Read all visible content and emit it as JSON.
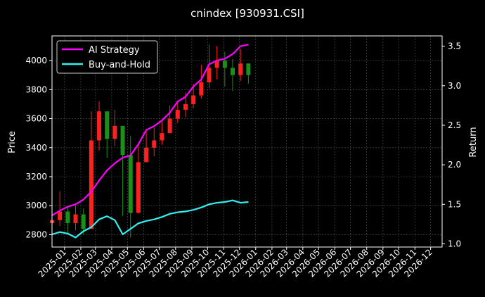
{
  "chart_data": {
    "type": "line",
    "title": "cnindex [930931.CSI]",
    "ylabel_left": "Price",
    "ylabel_right": "Return",
    "background": "#000000",
    "grid": true,
    "legend_position": "top-left",
    "x_axis": {
      "type": "date",
      "range": [
        "2024-12-08",
        "2026-12-23"
      ],
      "ticks": [
        "2025-01",
        "2025-02",
        "2025-03",
        "2025-04",
        "2025-05",
        "2025-06",
        "2025-07",
        "2025-08",
        "2025-09",
        "2025-10",
        "2025-11",
        "2025-12",
        "2026-01",
        "2026-02",
        "2026-03",
        "2026-04",
        "2026-05",
        "2026-06",
        "2026-07",
        "2026-08",
        "2026-09",
        "2026-10",
        "2026-11",
        "2026-12"
      ]
    },
    "y_left": {
      "range": [
        2715,
        4170
      ],
      "ticks": [
        2800,
        3000,
        3200,
        3400,
        3600,
        3800,
        4000
      ]
    },
    "y_right": {
      "range": [
        0.96,
        3.63
      ],
      "ticks": [
        1.0,
        1.5,
        2.0,
        2.5,
        3.0,
        3.5
      ]
    },
    "candles": {
      "up_color": "#ff2020",
      "down_color": "#1a8f1a",
      "dates": [
        "2024-12-08",
        "2024-12-23",
        "2025-01-07",
        "2025-01-22",
        "2025-02-06",
        "2025-02-21",
        "2025-03-08",
        "2025-03-23",
        "2025-04-07",
        "2025-04-22",
        "2025-05-07",
        "2025-05-22",
        "2025-06-06",
        "2025-06-21",
        "2025-07-06",
        "2025-07-21",
        "2025-08-05",
        "2025-08-20",
        "2025-09-04",
        "2025-09-19",
        "2025-10-04",
        "2025-10-19",
        "2025-11-03",
        "2025-11-18",
        "2025-12-03",
        "2025-12-18"
      ],
      "close": [
        2900,
        2960,
        2880,
        2940,
        2840,
        3450,
        3650,
        3460,
        3550,
        3350,
        2950,
        3300,
        3400,
        3450,
        3500,
        3600,
        3660,
        3700,
        3760,
        3850,
        3950,
        4000,
        3950,
        3900,
        3980,
        3900
      ],
      "high": [
        2960,
        3100,
        2990,
        3000,
        2980,
        3650,
        3720,
        3600,
        3660,
        3500,
        3480,
        3430,
        3510,
        3540,
        3580,
        3690,
        3720,
        3780,
        3840,
        3970,
        4110,
        4100,
        4060,
        4010,
        4080,
        3980
      ],
      "low": [
        2840,
        2860,
        2810,
        2830,
        2800,
        2900,
        3380,
        3330,
        3410,
        2930,
        2780,
        3190,
        3310,
        3340,
        3420,
        3520,
        3570,
        3610,
        3670,
        3740,
        3810,
        3870,
        3820,
        3790,
        3860,
        3840
      ]
    },
    "series": [
      {
        "name": "AI Strategy",
        "color": "#ff00ff",
        "axis": "right",
        "x": [
          "2024-12-08",
          "2024-12-23",
          "2025-01-07",
          "2025-01-22",
          "2025-02-06",
          "2025-02-21",
          "2025-03-08",
          "2025-03-23",
          "2025-04-07",
          "2025-04-22",
          "2025-05-07",
          "2025-05-22",
          "2025-06-06",
          "2025-06-21",
          "2025-07-06",
          "2025-07-21",
          "2025-08-05",
          "2025-08-20",
          "2025-09-04",
          "2025-09-19",
          "2025-10-04",
          "2025-10-19",
          "2025-11-03",
          "2025-11-18",
          "2025-12-03",
          "2025-12-18"
        ],
        "y": [
          1.36,
          1.42,
          1.47,
          1.5,
          1.56,
          1.66,
          1.8,
          1.93,
          2.02,
          2.09,
          2.12,
          2.26,
          2.44,
          2.49,
          2.56,
          2.66,
          2.8,
          2.86,
          2.99,
          3.08,
          3.27,
          3.32,
          3.34,
          3.4,
          3.5,
          3.52
        ]
      },
      {
        "name": "Buy-and-Hold",
        "color": "#33eeee",
        "axis": "right",
        "x": [
          "2024-12-08",
          "2024-12-23",
          "2025-01-07",
          "2025-01-22",
          "2025-02-06",
          "2025-02-21",
          "2025-03-08",
          "2025-03-23",
          "2025-04-07",
          "2025-04-22",
          "2025-05-07",
          "2025-05-22",
          "2025-06-06",
          "2025-06-21",
          "2025-07-06",
          "2025-07-21",
          "2025-08-05",
          "2025-08-20",
          "2025-09-04",
          "2025-09-19",
          "2025-10-04",
          "2025-10-19",
          "2025-11-03",
          "2025-11-18",
          "2025-12-03",
          "2025-12-18"
        ],
        "y": [
          1.12,
          1.15,
          1.13,
          1.08,
          1.16,
          1.21,
          1.31,
          1.35,
          1.3,
          1.12,
          1.19,
          1.26,
          1.29,
          1.31,
          1.34,
          1.38,
          1.4,
          1.41,
          1.43,
          1.46,
          1.5,
          1.52,
          1.53,
          1.55,
          1.52,
          1.53
        ]
      }
    ]
  }
}
